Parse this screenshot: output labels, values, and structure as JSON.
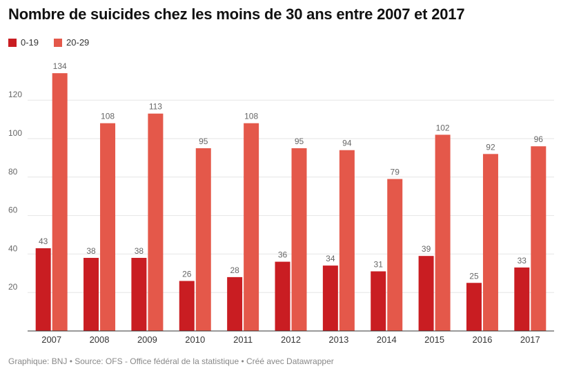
{
  "title": "Nombre de suicides chez les moins de 30 ans entre 2007 et 2017",
  "footer": "Graphique: BNJ • Source: OFS - Office fédéral de la statistique • Créé avec Datawrapper",
  "colors": {
    "series_0_19": "#c91d22",
    "series_20_29": "#e4584a",
    "grid": "#e6e6e6",
    "axis": "#333333",
    "label": "#666666"
  },
  "chart_data": {
    "type": "bar",
    "categories": [
      "2007",
      "2008",
      "2009",
      "2010",
      "2011",
      "2012",
      "2013",
      "2014",
      "2015",
      "2016",
      "2017"
    ],
    "series": [
      {
        "name": "0-19",
        "values": [
          43,
          38,
          38,
          26,
          28,
          36,
          34,
          31,
          39,
          25,
          33
        ]
      },
      {
        "name": "20-29",
        "values": [
          134,
          108,
          113,
          95,
          108,
          95,
          94,
          79,
          102,
          92,
          96
        ]
      }
    ],
    "title": "Nombre de suicides chez les moins de 30 ans entre 2007 et 2017",
    "ylim": [
      0,
      134
    ],
    "yticks": [
      20,
      40,
      60,
      80,
      100,
      120
    ],
    "grid": true,
    "legend_position": "top-left"
  }
}
